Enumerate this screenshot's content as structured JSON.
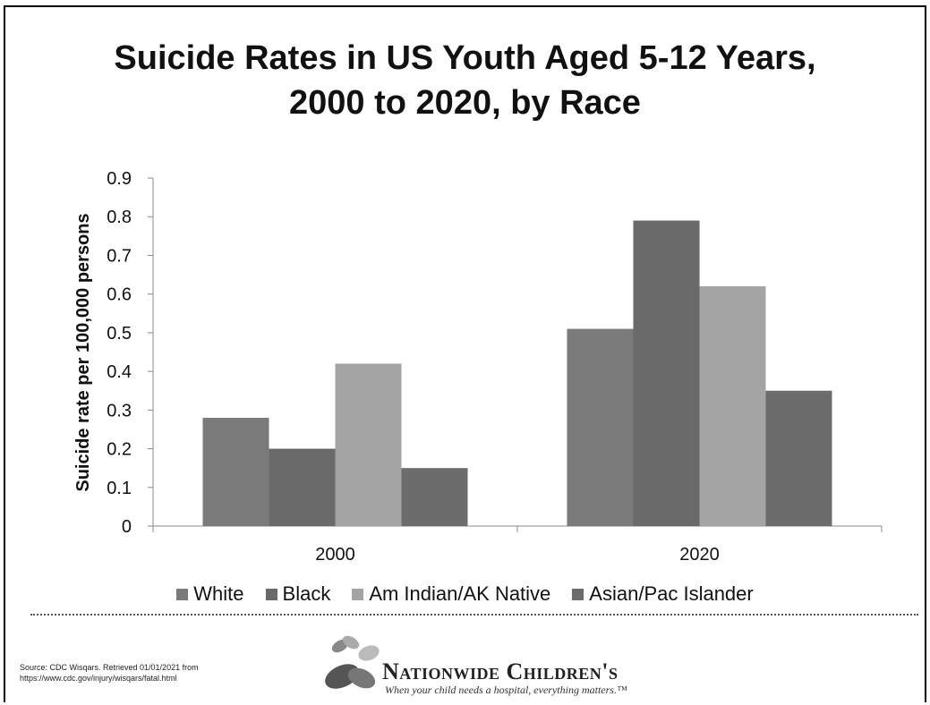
{
  "chart_data": {
    "type": "bar",
    "title_line1": "Suicide Rates in US Youth Aged 5-12 Years,",
    "title_line2": "2000 to 2020, by Race",
    "ylabel": "Suicide rate per 100,000 persons",
    "xlabel": "",
    "ylim": [
      0,
      0.9
    ],
    "yticks": [
      "0",
      "0.1",
      "0.2",
      "0.3",
      "0.4",
      "0.5",
      "0.6",
      "0.7",
      "0.8",
      "0.9"
    ],
    "categories": [
      "2000",
      "2020"
    ],
    "series": [
      {
        "name": "White",
        "values": [
          0.28,
          0.51
        ],
        "color": "#7a7a7a"
      },
      {
        "name": "Black",
        "values": [
          0.2,
          0.79
        ],
        "color": "#6a6a6a"
      },
      {
        "name": "Am Indian/AK Native",
        "values": [
          0.42,
          0.62
        ],
        "color": "#a4a4a4"
      },
      {
        "name": "Asian/Pac Islander",
        "values": [
          0.15,
          0.35
        ],
        "color": "#6c6c6c"
      }
    ],
    "legend_position": "bottom",
    "grid": false
  },
  "footer": {
    "source_line1": "Source: CDC Wisqars. Retrieved 01/01/2021 from",
    "source_line2": "https://www.cdc.gov/injury/wisqars/fatal.html",
    "brand_name": "Nationwide Children's",
    "tagline": "When your child needs a hospital, everything matters.™"
  }
}
